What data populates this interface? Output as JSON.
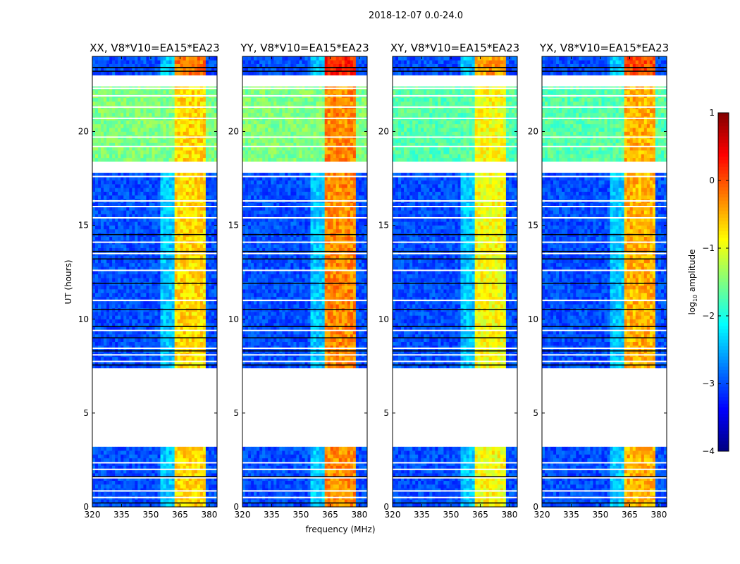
{
  "chart_data": {
    "type": "heatmap",
    "suptitle": "2018-12-07 0.0-24.0",
    "panels": [
      {
        "title": "XX, V8*V10=EA15*EA23",
        "polarization": "XX"
      },
      {
        "title": "YY, V8*V10=EA15*EA23",
        "polarization": "YY"
      },
      {
        "title": "XY, V8*V10=EA15*EA23",
        "polarization": "XY"
      },
      {
        "title": "YX, V8*V10=EA15*EA23",
        "polarization": "YX"
      }
    ],
    "xlabel": "frequency (MHz)",
    "ylabel": "UT (hours)",
    "xlim": [
      320,
      384
    ],
    "ylim": [
      0,
      24
    ],
    "xticks": [
      320,
      335,
      350,
      365,
      380
    ],
    "yticks": [
      0,
      5,
      10,
      15,
      20
    ],
    "colorbar": {
      "label": "log10 amplitude",
      "label_main": "log",
      "label_sub": "10",
      "label_rest": " amplitude",
      "colormap": "jet",
      "range": [
        -4,
        1
      ],
      "ticks": [
        1,
        0,
        -1,
        -2,
        -3,
        -4
      ],
      "tick_labels": [
        "1",
        "0",
        "−1",
        "−2",
        "−3",
        "−4"
      ]
    },
    "flagged_time_ranges_hours": [
      [
        3.3,
        7.5
      ],
      [
        17.8,
        18.5
      ],
      [
        22.5,
        23.0
      ]
    ],
    "rfi_band_mhz": [
      361.5,
      379.5
    ],
    "band_amplitude_log10": {
      "XX": -0.7,
      "YY": -0.3,
      "XY": -0.9,
      "YX": -0.5
    },
    "background_amplitude_log10": {
      "day": -3.0,
      "evening_18_22h": -1.5
    }
  }
}
